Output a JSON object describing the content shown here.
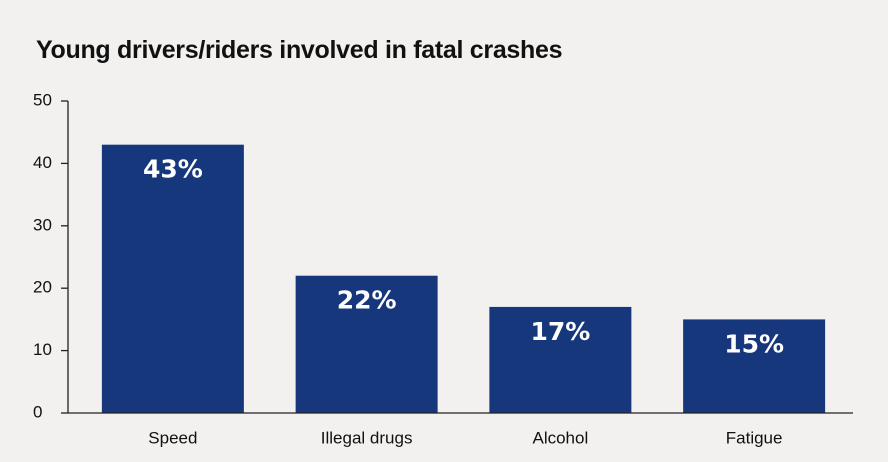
{
  "chart_data": {
    "type": "bar",
    "title": "Young drivers/riders involved in fatal crashes",
    "xlabel": "",
    "ylabel": "",
    "categories": [
      "Speed",
      "Illegal drugs",
      "Alcohol",
      "Fatigue"
    ],
    "values": [
      43,
      22,
      17,
      15
    ],
    "data_labels": [
      "43%",
      "22%",
      "17%",
      "15%"
    ],
    "ylim": [
      0,
      50
    ],
    "yticks": [
      0,
      10,
      20,
      30,
      40,
      50
    ],
    "grid": false,
    "legend": "none",
    "bar_color": "#17377d",
    "label_color": "#ffffff"
  }
}
